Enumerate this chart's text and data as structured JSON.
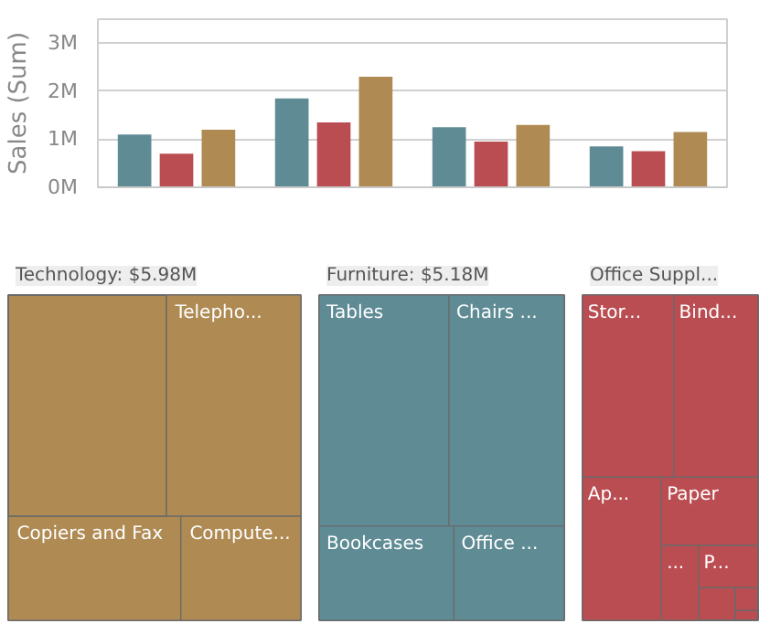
{
  "chart_data": [
    {
      "type": "bar",
      "ylabel": "Sales (Sum)",
      "categories": [
        null,
        null,
        null,
        null
      ],
      "series": [
        {
          "color": "#5f8b95",
          "values": [
            1.1,
            1.85,
            1.25,
            0.85
          ]
        },
        {
          "color": "#ba4d51",
          "values": [
            0.7,
            1.35,
            0.95,
            0.75
          ]
        },
        {
          "color": "#af8a53",
          "values": [
            1.2,
            2.3,
            1.3,
            1.15
          ]
        }
      ],
      "ylim": [
        0,
        3.5
      ],
      "yticks": [
        {
          "value": 0,
          "label": "0M"
        },
        {
          "value": 1,
          "label": "1M"
        },
        {
          "value": 2,
          "label": "2M"
        },
        {
          "value": 3,
          "label": "3M"
        }
      ],
      "grid": "y"
    },
    {
      "type": "other",
      "title": "Technology: $5.98M",
      "color": "#af8a53",
      "categories": [
        null,
        "Telepho...",
        "Copiers and Fax",
        "Compute..."
      ]
    },
    {
      "type": "other",
      "title": "Furniture: $5.18M",
      "color": "#5f8b95",
      "categories": [
        "Tables",
        "Chairs ...",
        "Bookcases",
        "Office ..."
      ]
    },
    {
      "type": "other",
      "title": "Office Suppl...",
      "color": "#ba4d51",
      "categories": [
        "Stor...",
        "Bind...",
        "Ap...",
        "Paper",
        "...",
        "P...",
        null,
        null,
        null
      ]
    }
  ]
}
